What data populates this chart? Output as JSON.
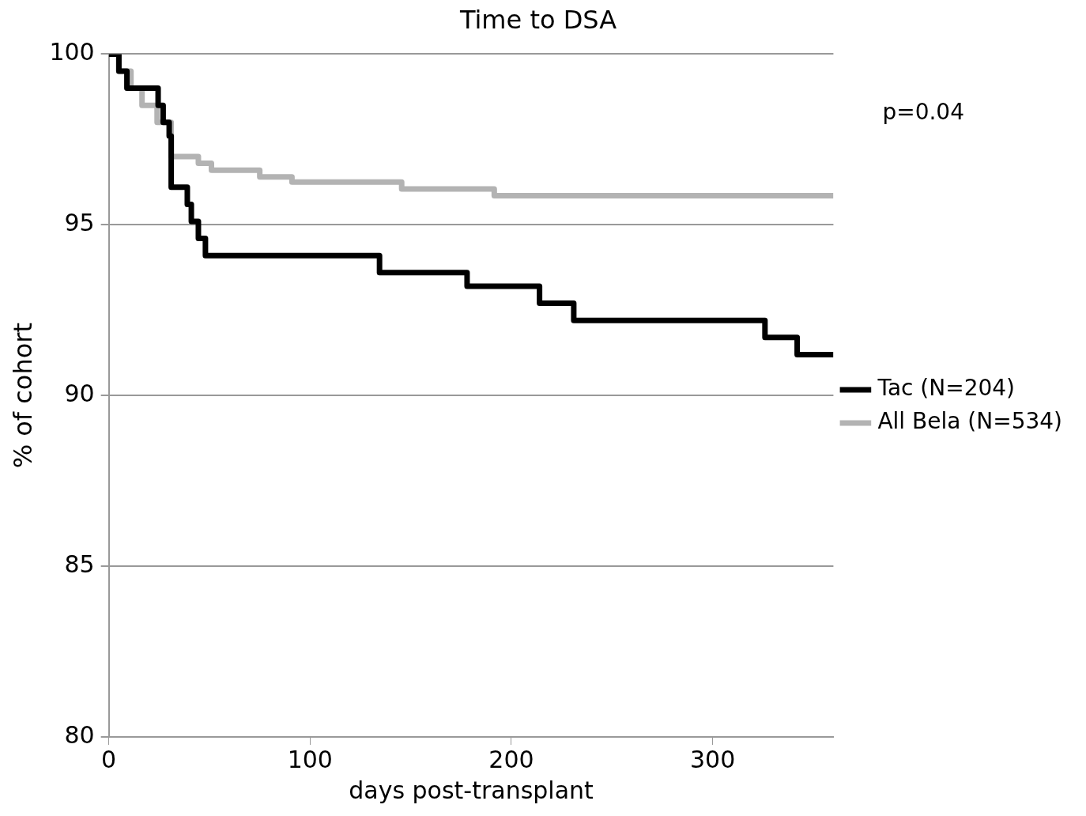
{
  "chart_data": {
    "type": "step",
    "title": "Time to DSA",
    "xlabel": "days post-transplant",
    "ylabel": "% of cohort",
    "annotations": [
      "p=0.04"
    ],
    "xlim": [
      0,
      360
    ],
    "xticks": [
      0,
      100,
      200,
      300
    ],
    "ylim": [
      80,
      100
    ],
    "yticks": [
      80,
      85,
      90,
      95,
      100
    ],
    "grid": "y",
    "legend": "right",
    "marker": "none",
    "line_style": "solid",
    "series": [
      {
        "name": "All Bela (N=534)",
        "color": "#b3b3b3",
        "x": [
          0,
          5,
          11,
          16.5,
          24,
          31,
          44.5,
          51,
          75,
          91,
          145.5,
          191.5,
          360
        ],
        "values": [
          100,
          99.5,
          99,
          98.5,
          98,
          97,
          96.8,
          96.6,
          96.4,
          96.25,
          96.05,
          95.85,
          95.85
        ]
      },
      {
        "name": "Tac (N=204)",
        "color": "#000000",
        "x": [
          0,
          5,
          9,
          24.5,
          27,
          30,
          31,
          39,
          41,
          44.5,
          48,
          134.5,
          178,
          214,
          231,
          326,
          342,
          360
        ],
        "values": [
          100,
          99.5,
          99,
          98.5,
          98,
          97.6,
          96.1,
          95.6,
          95.1,
          94.6,
          94.1,
          93.6,
          93.2,
          92.7,
          92.2,
          91.7,
          91.2,
          91.2
        ]
      }
    ]
  }
}
